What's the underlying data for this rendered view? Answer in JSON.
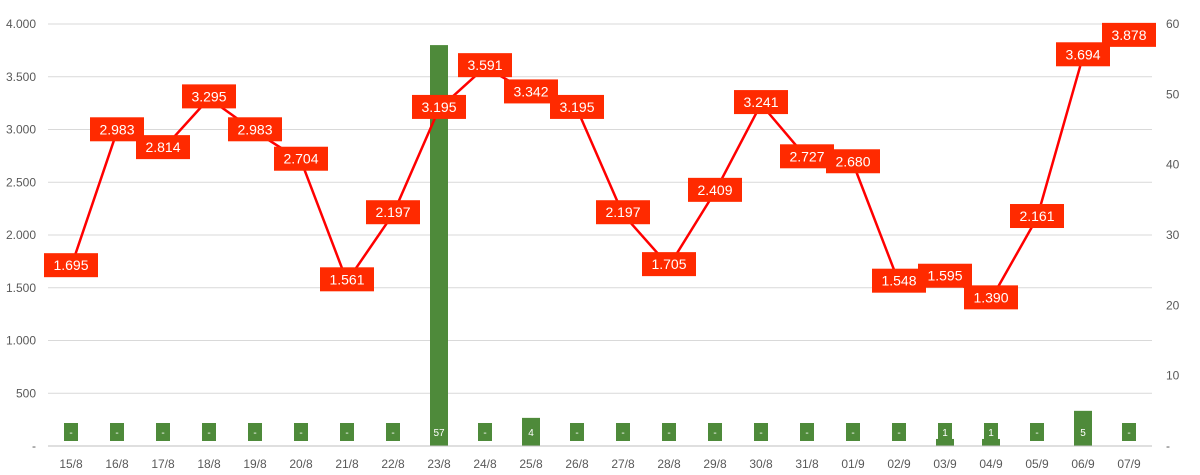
{
  "chart_data": {
    "type": "bar+line",
    "title": "",
    "xlabel": "",
    "ylabel": "",
    "y2label": "",
    "grid": true,
    "legend": "none",
    "categories": [
      "15/8",
      "16/8",
      "17/8",
      "18/8",
      "19/8",
      "20/8",
      "21/8",
      "22/8",
      "23/8",
      "24/8",
      "25/8",
      "26/8",
      "27/8",
      "28/8",
      "29/8",
      "30/8",
      "31/8",
      "01/9",
      "02/9",
      "03/9",
      "04/9",
      "05/9",
      "06/9",
      "07/9"
    ],
    "y_axis": {
      "range": [
        0,
        4000
      ],
      "tick_labels": [
        "-",
        "500",
        "1.000",
        "1.500",
        "2.000",
        "2.500",
        "3.000",
        "3.500",
        "4.000"
      ]
    },
    "y2_axis": {
      "range": [
        0,
        60
      ],
      "tick_labels": [
        "-",
        "10",
        "20",
        "30",
        "40",
        "50",
        "60"
      ]
    },
    "series": [
      {
        "type": "line",
        "axis": "left",
        "color": "#ff0000",
        "label_fill": "#ff2a00",
        "values": [
          1695,
          2983,
          2814,
          3295,
          2983,
          2704,
          1561,
          2197,
          3195,
          3591,
          3342,
          3195,
          2197,
          1705,
          2409,
          3241,
          2727,
          2680,
          1548,
          1595,
          1390,
          2161,
          3694,
          3878
        ],
        "data_labels": [
          "1.695",
          "2.983",
          "2.814",
          "3.295",
          "2.983",
          "2.704",
          "1.561",
          "2.197",
          "3.195",
          "3.591",
          "3.342",
          "3.195",
          "2.197",
          "1.705",
          "2.409",
          "3.241",
          "2.727",
          "2.680",
          "1.548",
          "1.595",
          "1.390",
          "2.161",
          "3.694",
          "3.878"
        ]
      },
      {
        "type": "bar",
        "axis": "right",
        "color": "#4e8a3a",
        "values": [
          0,
          0,
          0,
          0,
          0,
          0,
          0,
          0,
          57,
          0,
          4,
          0,
          0,
          0,
          0,
          0,
          0,
          0,
          0,
          1,
          1,
          0,
          5,
          0
        ],
        "data_labels": [
          "-",
          "-",
          "-",
          "-",
          "-",
          "-",
          "-",
          "-",
          "57",
          "-",
          "4",
          "-",
          "-",
          "-",
          "-",
          "-",
          "-",
          "-",
          "-",
          "1",
          "1",
          "-",
          "5",
          "-"
        ]
      }
    ],
    "colors": {
      "grid": "#d9d9d9",
      "axis_text": "#595959"
    }
  }
}
